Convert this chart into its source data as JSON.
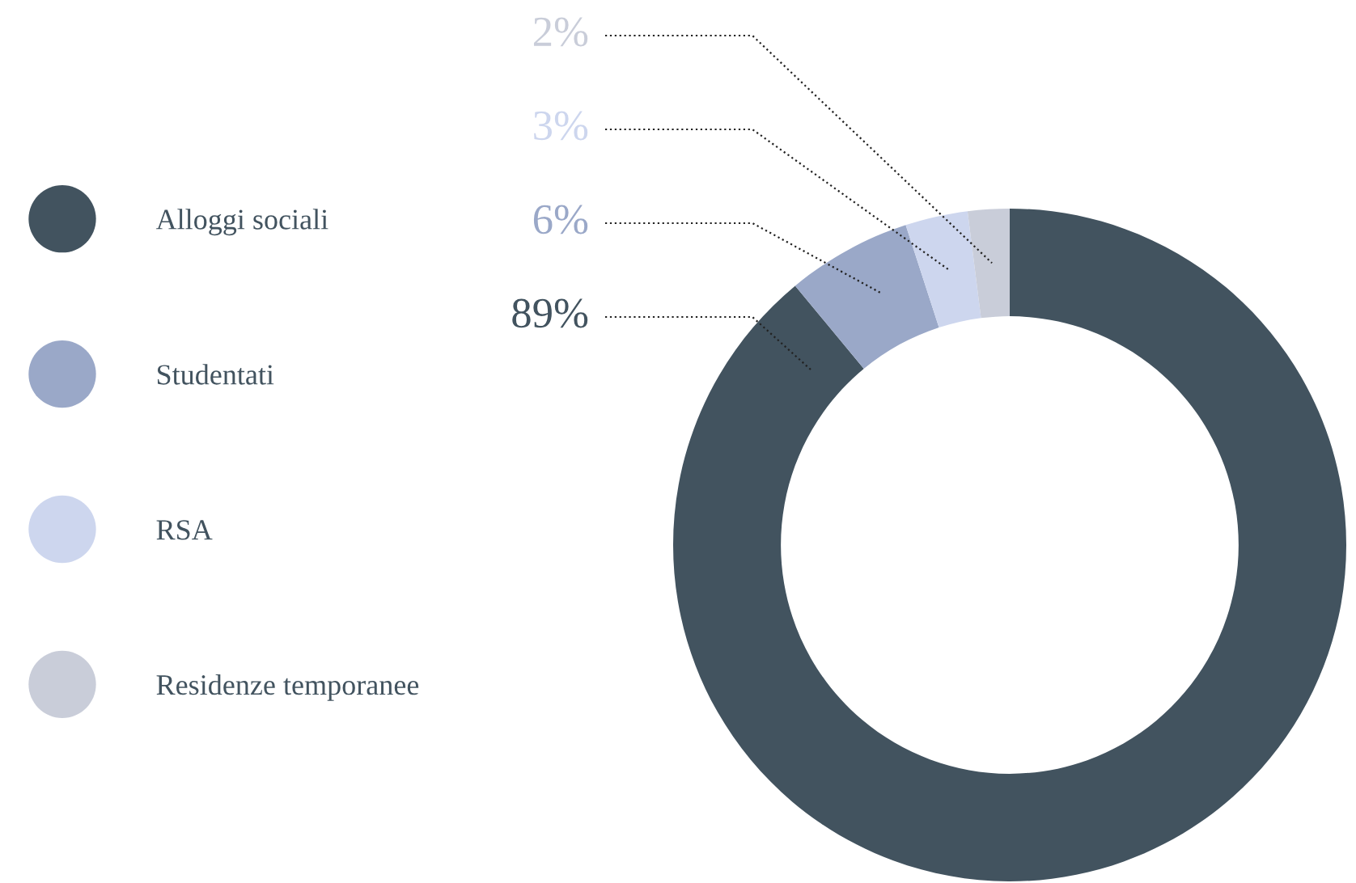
{
  "chart_data": {
    "type": "donut",
    "categories": [
      "Alloggi sociali",
      "Studentati",
      "RSA",
      "Residenze temporanee"
    ],
    "values": [
      89,
      6,
      3,
      2
    ],
    "colors": [
      "#42535f",
      "#9aa8c8",
      "#cdd6ee",
      "#c9cdd9"
    ],
    "value_labels": [
      "89%",
      "6%",
      "3%",
      "2%"
    ],
    "legend": "left"
  }
}
